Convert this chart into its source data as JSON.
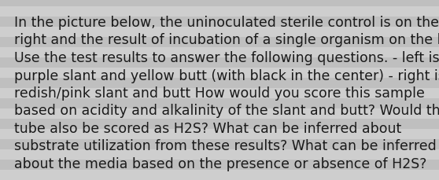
{
  "lines": [
    "In the picture below, the uninoculated sterile control is on the",
    "right and the result of incubation of a single organism on the left.",
    "Use the test results to answer the following questions. - left is",
    "purple slant and yellow butt (with black in the center) - right is",
    "redish/pink slant and butt How would you score this sample",
    "based on acidity and alkalinity of the slant and butt? Would this",
    "tube also be scored as H2S? What can be inferred about",
    "substrate utilization from these results? What can be inferred",
    "about the media based on the presence or absence of H2S?"
  ],
  "background_color": "#c8c8c8",
  "stripe_color_light": "#d4d4d4",
  "stripe_color_dark": "#b8b8b8",
  "text_color": "#1a1a1a",
  "font_size": 12.5,
  "figwidth": 5.58,
  "figheight": 2.3,
  "dpi": 100
}
